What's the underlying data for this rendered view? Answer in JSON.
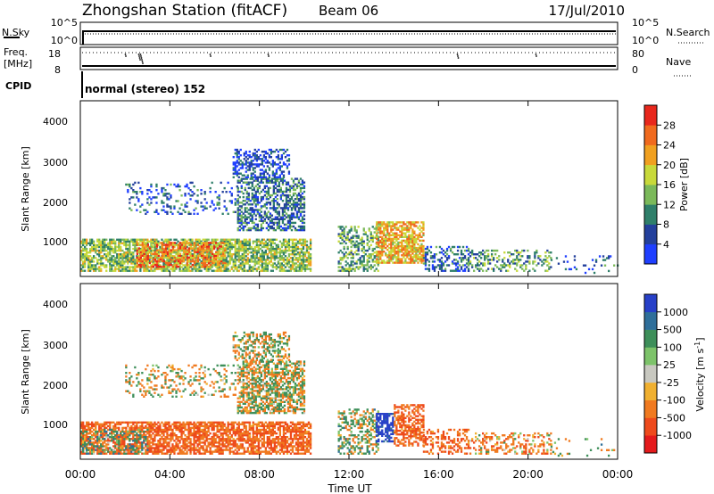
{
  "header": {
    "title": "Zhongshan Station (fitACF)",
    "beam": "Beam 06",
    "date": "17/Jul/2010"
  },
  "mode_label": "normal (stereo) 152",
  "noise_panel": {
    "left_label": "N.Sky",
    "right_label": "N.Search",
    "left_ticks": [
      "10^5",
      "10^0"
    ],
    "right_ticks": [
      "10^5",
      "10^0"
    ]
  },
  "freq_panel": {
    "left_label_1": "Freq.",
    "left_label_2": "[MHz]",
    "right_label": "Nave",
    "left_ticks": [
      "18",
      "8"
    ],
    "right_ticks": [
      "80",
      "0"
    ]
  },
  "cpid_label": "CPID",
  "x_ticks": [
    "00:00",
    "04:00",
    "08:00",
    "12:00",
    "16:00",
    "20:00",
    "00:00"
  ],
  "x_label": "Time UT",
  "y_label": "Slant Range [km]",
  "y_ticks": [
    "1000",
    "2000",
    "3000",
    "4000"
  ],
  "power_colorbar": {
    "label": "Power [dB]",
    "ticks": [
      "4",
      "8",
      "12",
      "16",
      "20",
      "24",
      "28"
    ],
    "colors": [
      "#1f3fff",
      "#23409c",
      "#2f7f6a",
      "#7bb95a",
      "#c8d93a",
      "#f0a020",
      "#f06a1e",
      "#e8271c"
    ]
  },
  "velocity_colorbar": {
    "label": "Velocity [m s",
    "label_sup": "-1",
    "label_end": "]",
    "ticks": [
      "1000",
      "500",
      "100",
      "25",
      "-25",
      "-100",
      "-500",
      "-1000"
    ],
    "colors": [
      "#2740c8",
      "#2f6f9a",
      "#3e8f5a",
      "#7dc36a",
      "#c8c8c0",
      "#f0b030",
      "#f07a20",
      "#ee4a1c",
      "#e41a1c"
    ]
  },
  "chart_data": [
    {
      "type": "heatmap",
      "name": "Power",
      "xlabel": "Time UT",
      "ylabel": "Slant Range [km]",
      "xlim": [
        0,
        24
      ],
      "ylim": [
        180,
        4500
      ],
      "cbar_range": [
        0,
        30
      ],
      "regions": [
        {
          "t": [
            0.0,
            10.3
          ],
          "r": [
            300,
            1100
          ],
          "level": 14,
          "density": 0.72
        },
        {
          "t": [
            2.5,
            6.5
          ],
          "r": [
            400,
            1000
          ],
          "level": 23,
          "density": 0.55
        },
        {
          "t": [
            7.0,
            10.0
          ],
          "r": [
            1300,
            2600
          ],
          "level": 8,
          "density": 0.55
        },
        {
          "t": [
            6.8,
            9.3
          ],
          "r": [
            2600,
            3300
          ],
          "level": 4,
          "density": 0.45
        },
        {
          "t": [
            2.0,
            7.0
          ],
          "r": [
            1700,
            2500
          ],
          "level": 6,
          "density": 0.18
        },
        {
          "t": [
            11.5,
            13.3
          ],
          "r": [
            300,
            1400
          ],
          "level": 12,
          "density": 0.45
        },
        {
          "t": [
            13.2,
            15.3
          ],
          "r": [
            500,
            1500
          ],
          "level": 20,
          "density": 0.7
        },
        {
          "t": [
            15.3,
            17.3
          ],
          "r": [
            300,
            900
          ],
          "level": 7,
          "density": 0.35
        },
        {
          "t": [
            17.3,
            21.0
          ],
          "r": [
            300,
            800
          ],
          "level": 11,
          "density": 0.35
        },
        {
          "t": [
            21.0,
            24.0
          ],
          "r": [
            250,
            700
          ],
          "level": 6,
          "density": 0.08
        }
      ]
    },
    {
      "type": "heatmap",
      "name": "Velocity",
      "xlabel": "Time UT",
      "ylabel": "Slant Range [km]",
      "xlim": [
        0,
        24
      ],
      "ylim": [
        180,
        4500
      ],
      "cbar_range": [
        -1000,
        1000
      ],
      "regions": [
        {
          "t": [
            0.0,
            10.3
          ],
          "r": [
            300,
            1100
          ],
          "level": -300,
          "density": 0.72
        },
        {
          "t": [
            0.0,
            3.0
          ],
          "r": [
            300,
            900
          ],
          "level": 150,
          "density": 0.35
        },
        {
          "t": [
            7.0,
            10.0
          ],
          "r": [
            1300,
            2600
          ],
          "level": 0,
          "density": 0.6
        },
        {
          "t": [
            6.8,
            9.3
          ],
          "r": [
            2600,
            3300
          ],
          "level": 0,
          "density": 0.45
        },
        {
          "t": [
            2.0,
            7.0
          ],
          "r": [
            1700,
            2500
          ],
          "level": 0,
          "density": 0.2
        },
        {
          "t": [
            11.5,
            13.3
          ],
          "r": [
            300,
            1400
          ],
          "level": 80,
          "density": 0.45
        },
        {
          "t": [
            13.2,
            14.0
          ],
          "r": [
            600,
            1300
          ],
          "level": 800,
          "density": 0.6
        },
        {
          "t": [
            14.0,
            15.3
          ],
          "r": [
            500,
            1500
          ],
          "level": -300,
          "density": 0.6
        },
        {
          "t": [
            15.3,
            17.3
          ],
          "r": [
            300,
            900
          ],
          "level": -300,
          "density": 0.4
        },
        {
          "t": [
            17.3,
            21.0
          ],
          "r": [
            300,
            800
          ],
          "level": -150,
          "density": 0.35
        },
        {
          "t": [
            21.0,
            24.0
          ],
          "r": [
            250,
            700
          ],
          "level": 60,
          "density": 0.08
        }
      ]
    }
  ]
}
